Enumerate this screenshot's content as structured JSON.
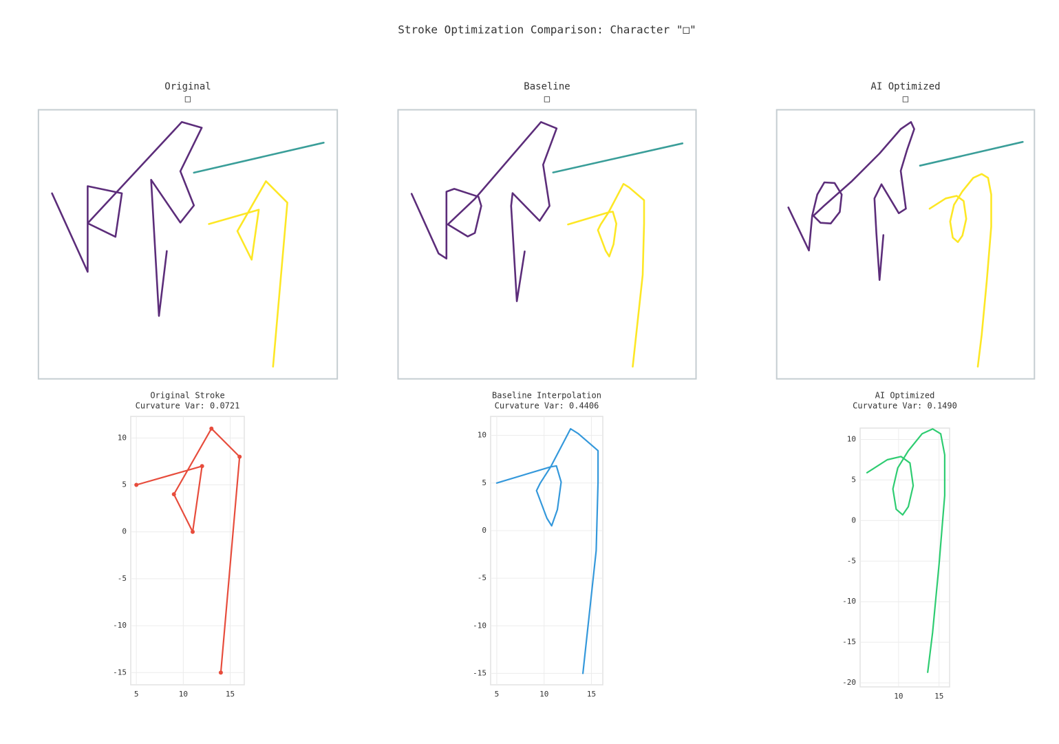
{
  "title": "Stroke Optimization Comparison: Character \"□\"",
  "chart_data": [
    {
      "type": "line",
      "title": [
        "Original",
        "□"
      ],
      "axes": false,
      "series": [
        {
          "color": "#5c2d7a",
          "x": [
            -17.0,
            -12.0,
            -12.0,
            -7.2,
            -8.1,
            -12.0,
            1.2,
            4.0,
            1.0,
            2.9,
            1.0,
            -3.1,
            -2.0,
            -0.9
          ],
          "values": [
            9.3,
            -1.7,
            10.3,
            9.3,
            3.2,
            5.1,
            19.3,
            18.5,
            12.4,
            7.6,
            5.2,
            11.2,
            -7.9,
            1.2
          ]
        },
        {
          "color": "#3a9e99",
          "x": [
            2.9,
            21.1
          ],
          "values": [
            12.2,
            16.4
          ]
        },
        {
          "color": "#fde725",
          "x": [
            5,
            12,
            11,
            9,
            13,
            16,
            14
          ],
          "values": [
            5,
            7,
            0,
            4,
            11,
            8,
            -15
          ]
        }
      ]
    },
    {
      "type": "line",
      "title": [
        "Baseline",
        "□"
      ],
      "axes": false,
      "series": [
        {
          "color": "#5c2d7a",
          "x": [
            -17.0,
            -13.2,
            -12.1,
            -12.1,
            -11.0,
            -7.6,
            -7.2,
            -8.1,
            -9.1,
            -11.9,
            -8.1,
            1.2,
            3.4,
            1.5,
            2.4,
            1.0,
            -2.8,
            -3.0,
            -2.2,
            -1.1
          ],
          "values": [
            9.3,
            0.9,
            0.2,
            9.6,
            10.0,
            8.9,
            7.6,
            3.8,
            3.3,
            5.0,
            8.6,
            19.4,
            18.5,
            13.4,
            7.6,
            5.5,
            9.4,
            7.6,
            -5.8,
            1.2
          ]
        },
        {
          "color": "#3a9e99",
          "x": [
            2.9,
            21.1
          ],
          "values": [
            12.3,
            16.4
          ]
        },
        {
          "color": "#fde725",
          "x": [
            5,
            10.7,
            11.3,
            11.8,
            11.4,
            10.8,
            10.3,
            9.2,
            9.6,
            10.7,
            12.8,
            13.6,
            15.7,
            15.7,
            15.5,
            14.1
          ],
          "values": [
            5,
            6.7,
            6.8,
            5.1,
            2.2,
            0.5,
            1.3,
            4.2,
            5,
            6.7,
            10.7,
            10.2,
            8.4,
            5.1,
            -2.1,
            -15
          ]
        }
      ]
    },
    {
      "type": "line",
      "title": [
        "AI Optimized",
        "□"
      ],
      "axes": false,
      "series": [
        {
          "color": "#5c2d7a",
          "x": [
            -15.9,
            -12.7,
            -12.2,
            -11.4,
            -10.3,
            -8.7,
            -7.6,
            -7.9,
            -9.3,
            -10.9,
            -12.0,
            -10.3,
            -6.0,
            -1.7,
            1.6,
            3.2,
            3.7,
            2.6,
            1.6,
            2.1,
            2.4,
            1.3,
            -1.4,
            -2.5,
            -2.2,
            -1.7,
            -1.1
          ],
          "values": [
            6.1,
            -0.6,
            4.8,
            8.1,
            10.0,
            9.9,
            8.1,
            5.4,
            3.6,
            3.7,
            4.8,
            6.4,
            10.2,
            14.5,
            18.3,
            19.4,
            18.3,
            15.1,
            11.8,
            8.1,
            5.9,
            5.2,
            9.7,
            7.5,
            2.1,
            -5.2,
            1.8
          ]
        },
        {
          "color": "#3a9e99",
          "x": [
            4.6,
            20.6
          ],
          "values": [
            12.6,
            16.3
          ]
        },
        {
          "color": "#fde725",
          "x": [
            6.1,
            8.6,
            10.3,
            11.4,
            11.8,
            11.2,
            10.5,
            9.7,
            9.3,
            9.9,
            11.2,
            12.9,
            14.2,
            15.2,
            15.7,
            15.7,
            15,
            14.2,
            13.6
          ],
          "values": [
            5.9,
            7.5,
            7.9,
            7.1,
            4.3,
            1.7,
            0.7,
            1.4,
            3.9,
            6.5,
            8.6,
            10.7,
            11.3,
            10.7,
            8.1,
            3.1,
            -5.4,
            -13.8,
            -18.7
          ]
        }
      ]
    },
    {
      "type": "line",
      "title": [
        "Original Stroke",
        "Curvature Var: 0.0721"
      ],
      "grid": true,
      "markers": true,
      "xlim": [
        4.4,
        16.5
      ],
      "ylim": [
        -16.3,
        12.3
      ],
      "xticks": [
        5,
        10,
        15
      ],
      "yticks": [
        -15,
        -10,
        -5,
        0,
        5,
        10
      ],
      "series": [
        {
          "color": "#e74c3c",
          "x": [
            5,
            12,
            11,
            9,
            13,
            16,
            14
          ],
          "values": [
            5,
            7,
            0,
            4,
            11,
            8,
            -15
          ]
        }
      ]
    },
    {
      "type": "line",
      "title": [
        "Baseline Interpolation",
        "Curvature Var: 0.4406"
      ],
      "grid": true,
      "markers": false,
      "xlim": [
        4.35,
        16.2
      ],
      "ylim": [
        -16.2,
        12.0
      ],
      "xticks": [
        5,
        10,
        15
      ],
      "yticks": [
        -15,
        -10,
        -5,
        0,
        5,
        10
      ],
      "series": [
        {
          "color": "#3498db",
          "x": [
            5,
            10.7,
            11.3,
            11.8,
            11.4,
            10.8,
            10.3,
            9.2,
            9.6,
            10.7,
            12.8,
            13.6,
            15.7,
            15.7,
            15.5,
            14.1
          ],
          "values": [
            5,
            6.7,
            6.8,
            5.1,
            2.2,
            0.5,
            1.3,
            4.2,
            5,
            6.7,
            10.7,
            10.2,
            8.4,
            5.1,
            -2.1,
            -15
          ]
        }
      ]
    },
    {
      "type": "line",
      "title": [
        "AI Optimized",
        "Curvature Var: 0.1490"
      ],
      "grid": true,
      "markers": false,
      "xlim": [
        5.25,
        16.3
      ],
      "ylim": [
        -20.5,
        11.4
      ],
      "xticks": [
        10,
        15
      ],
      "yticks": [
        -20,
        -15,
        -10,
        -5,
        0,
        5,
        10
      ],
      "series": [
        {
          "color": "#2ecc71",
          "x": [
            6.1,
            8.6,
            10.3,
            11.4,
            11.8,
            11.2,
            10.5,
            9.7,
            9.3,
            9.9,
            11.2,
            12.9,
            14.2,
            15.2,
            15.7,
            15.7,
            15,
            14.2,
            13.6
          ],
          "values": [
            5.9,
            7.5,
            7.9,
            7.1,
            4.3,
            1.7,
            0.7,
            1.4,
            3.9,
            6.5,
            8.6,
            10.7,
            11.3,
            10.7,
            8.1,
            3.1,
            -5.4,
            -13.8,
            -18.7
          ]
        }
      ]
    }
  ]
}
